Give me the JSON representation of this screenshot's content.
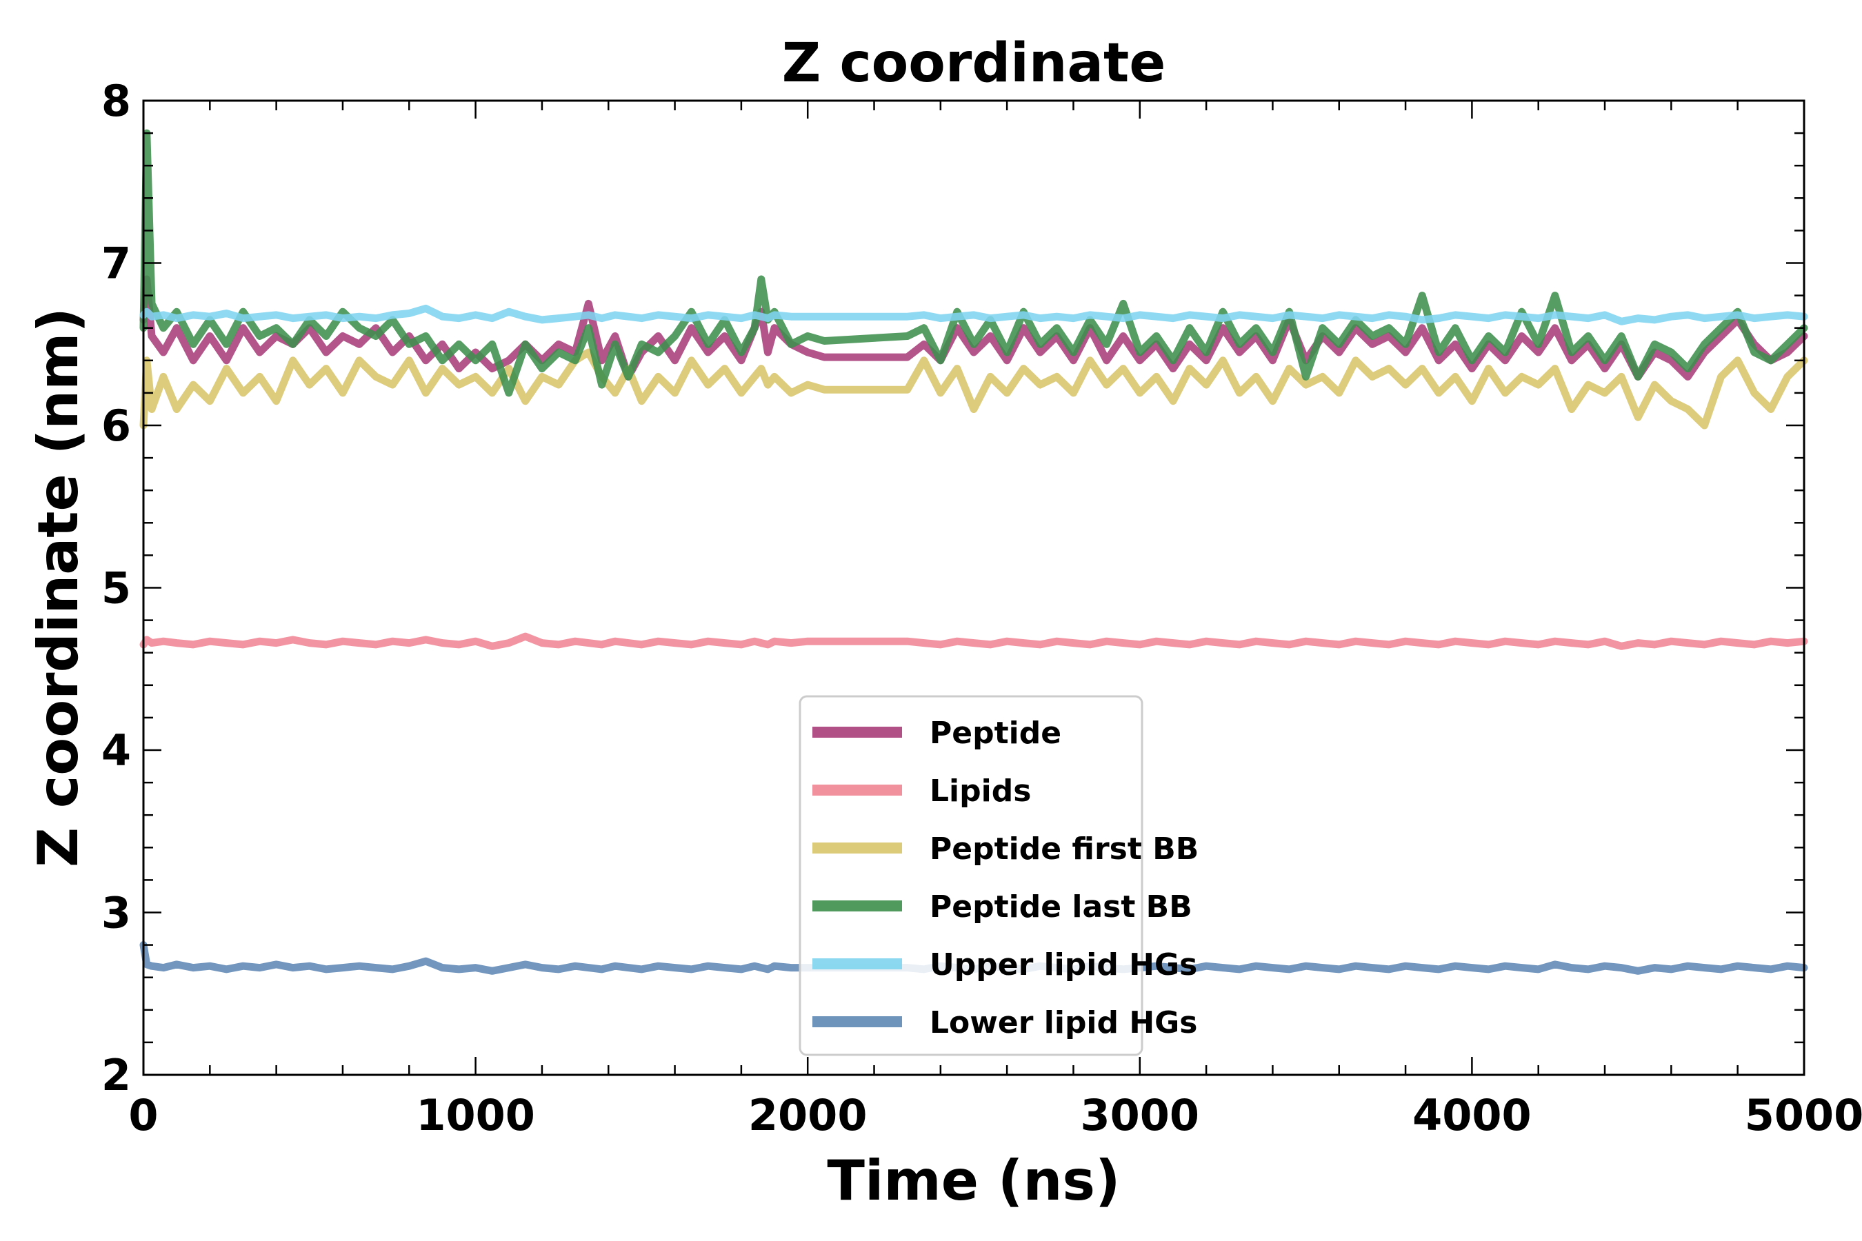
{
  "chart_data": {
    "type": "line",
    "title": "Z coordinate",
    "xlabel": "Time (ns)",
    "ylabel": "Z coordinate (nm)",
    "xlim": [
      0,
      5000
    ],
    "ylim": [
      2,
      8
    ],
    "x_major_ticks": [
      0,
      1000,
      2000,
      3000,
      4000,
      5000
    ],
    "y_major_ticks": [
      2,
      3,
      4,
      5,
      6,
      7,
      8
    ],
    "x_tick_labels": [
      "0",
      "1000",
      "2000",
      "3000",
      "4000",
      "5000"
    ],
    "y_tick_labels": [
      "2",
      "3",
      "4",
      "5",
      "6",
      "7",
      "8"
    ],
    "x_minor_step": 200,
    "y_minor_step": 0.2,
    "grid": false,
    "legend_position": "lower-center",
    "x": [
      0,
      10,
      25,
      60,
      100,
      150,
      200,
      250,
      300,
      350,
      400,
      450,
      500,
      550,
      600,
      650,
      700,
      750,
      800,
      850,
      900,
      950,
      1000,
      1050,
      1100,
      1150,
      1200,
      1250,
      1300,
      1340,
      1380,
      1420,
      1460,
      1500,
      1550,
      1600,
      1650,
      1700,
      1750,
      1800,
      1840,
      1860,
      1880,
      1900,
      1950,
      2000,
      2050,
      2300,
      2350,
      2400,
      2450,
      2500,
      2550,
      2600,
      2650,
      2700,
      2750,
      2800,
      2850,
      2900,
      2950,
      3000,
      3050,
      3100,
      3150,
      3200,
      3250,
      3300,
      3350,
      3400,
      3450,
      3500,
      3550,
      3600,
      3650,
      3700,
      3750,
      3800,
      3850,
      3900,
      3950,
      4000,
      4050,
      4100,
      4150,
      4200,
      4250,
      4300,
      4350,
      4400,
      4450,
      4500,
      4550,
      4600,
      4650,
      4700,
      4750,
      4800,
      4850,
      4900,
      4950,
      5000
    ],
    "series": [
      {
        "name": "Peptide",
        "color": "#a83d7a",
        "values": [
          6.65,
          6.9,
          6.55,
          6.45,
          6.6,
          6.4,
          6.55,
          6.4,
          6.6,
          6.45,
          6.55,
          6.5,
          6.6,
          6.45,
          6.55,
          6.5,
          6.6,
          6.45,
          6.55,
          6.4,
          6.5,
          6.35,
          6.45,
          6.35,
          6.4,
          6.5,
          6.4,
          6.5,
          6.45,
          6.75,
          6.4,
          6.55,
          6.3,
          6.45,
          6.55,
          6.4,
          6.6,
          6.45,
          6.55,
          6.4,
          6.6,
          6.7,
          6.45,
          6.6,
          6.5,
          6.45,
          6.42,
          6.42,
          6.5,
          6.4,
          6.6,
          6.45,
          6.55,
          6.4,
          6.6,
          6.45,
          6.55,
          6.4,
          6.6,
          6.4,
          6.55,
          6.4,
          6.5,
          6.35,
          6.5,
          6.4,
          6.6,
          6.45,
          6.55,
          6.4,
          6.65,
          6.4,
          6.55,
          6.45,
          6.6,
          6.5,
          6.55,
          6.45,
          6.6,
          6.4,
          6.5,
          6.35,
          6.5,
          6.4,
          6.55,
          6.45,
          6.6,
          6.4,
          6.5,
          6.35,
          6.5,
          6.3,
          6.45,
          6.4,
          6.3,
          6.45,
          6.55,
          6.65,
          6.5,
          6.4,
          6.45,
          6.55
        ]
      },
      {
        "name": "Lipids",
        "color": "#f08594",
        "values": [
          4.65,
          4.68,
          4.66,
          4.67,
          4.66,
          4.65,
          4.67,
          4.66,
          4.65,
          4.67,
          4.66,
          4.68,
          4.66,
          4.65,
          4.67,
          4.66,
          4.65,
          4.67,
          4.66,
          4.68,
          4.66,
          4.65,
          4.67,
          4.64,
          4.66,
          4.7,
          4.66,
          4.65,
          4.67,
          4.66,
          4.65,
          4.67,
          4.66,
          4.65,
          4.67,
          4.66,
          4.65,
          4.67,
          4.66,
          4.65,
          4.67,
          4.66,
          4.65,
          4.67,
          4.66,
          4.67,
          4.67,
          4.67,
          4.66,
          4.65,
          4.67,
          4.66,
          4.65,
          4.67,
          4.66,
          4.65,
          4.67,
          4.66,
          4.65,
          4.67,
          4.66,
          4.65,
          4.67,
          4.66,
          4.65,
          4.67,
          4.66,
          4.65,
          4.67,
          4.66,
          4.65,
          4.67,
          4.66,
          4.65,
          4.67,
          4.66,
          4.65,
          4.67,
          4.66,
          4.65,
          4.67,
          4.66,
          4.65,
          4.67,
          4.66,
          4.65,
          4.67,
          4.66,
          4.65,
          4.67,
          4.64,
          4.66,
          4.65,
          4.67,
          4.66,
          4.65,
          4.67,
          4.66,
          4.65,
          4.67,
          4.66,
          4.67
        ]
      },
      {
        "name": "Peptide first BB",
        "color": "#d8c56a",
        "values": [
          6.0,
          6.4,
          6.1,
          6.3,
          6.1,
          6.25,
          6.15,
          6.35,
          6.2,
          6.3,
          6.15,
          6.4,
          6.25,
          6.35,
          6.2,
          6.4,
          6.3,
          6.25,
          6.4,
          6.2,
          6.35,
          6.25,
          6.3,
          6.2,
          6.35,
          6.15,
          6.3,
          6.25,
          6.4,
          6.45,
          6.3,
          6.2,
          6.35,
          6.15,
          6.3,
          6.2,
          6.4,
          6.25,
          6.35,
          6.2,
          6.3,
          6.35,
          6.25,
          6.3,
          6.2,
          6.25,
          6.22,
          6.22,
          6.4,
          6.2,
          6.35,
          6.1,
          6.3,
          6.2,
          6.35,
          6.25,
          6.3,
          6.2,
          6.4,
          6.25,
          6.35,
          6.2,
          6.3,
          6.15,
          6.35,
          6.25,
          6.4,
          6.2,
          6.3,
          6.15,
          6.35,
          6.25,
          6.3,
          6.2,
          6.4,
          6.3,
          6.35,
          6.25,
          6.35,
          6.2,
          6.3,
          6.15,
          6.35,
          6.2,
          6.3,
          6.25,
          6.35,
          6.1,
          6.25,
          6.2,
          6.3,
          6.05,
          6.25,
          6.15,
          6.1,
          6.0,
          6.3,
          6.4,
          6.2,
          6.1,
          6.3,
          6.4
        ]
      },
      {
        "name": "Peptide last BB",
        "color": "#3e8f4d",
        "values": [
          6.6,
          7.8,
          6.75,
          6.6,
          6.7,
          6.5,
          6.65,
          6.5,
          6.7,
          6.55,
          6.6,
          6.5,
          6.65,
          6.55,
          6.7,
          6.6,
          6.55,
          6.65,
          6.5,
          6.55,
          6.4,
          6.5,
          6.4,
          6.5,
          6.2,
          6.5,
          6.35,
          6.45,
          6.4,
          6.6,
          6.25,
          6.5,
          6.3,
          6.5,
          6.45,
          6.55,
          6.7,
          6.5,
          6.65,
          6.45,
          6.6,
          6.9,
          6.65,
          6.7,
          6.5,
          6.55,
          6.52,
          6.55,
          6.6,
          6.4,
          6.7,
          6.5,
          6.65,
          6.45,
          6.7,
          6.5,
          6.6,
          6.45,
          6.65,
          6.5,
          6.75,
          6.45,
          6.55,
          6.4,
          6.6,
          6.45,
          6.7,
          6.5,
          6.6,
          6.45,
          6.7,
          6.3,
          6.6,
          6.5,
          6.65,
          6.55,
          6.6,
          6.5,
          6.8,
          6.45,
          6.6,
          6.4,
          6.55,
          6.45,
          6.7,
          6.5,
          6.8,
          6.45,
          6.55,
          6.4,
          6.55,
          6.3,
          6.5,
          6.45,
          6.35,
          6.5,
          6.6,
          6.7,
          6.45,
          6.4,
          6.5,
          6.6
        ]
      },
      {
        "name": "Upper lipid HGs",
        "color": "#7fd4f0",
        "values": [
          6.68,
          6.7,
          6.67,
          6.68,
          6.66,
          6.68,
          6.67,
          6.69,
          6.66,
          6.67,
          6.68,
          6.66,
          6.67,
          6.68,
          6.66,
          6.67,
          6.66,
          6.68,
          6.69,
          6.72,
          6.67,
          6.66,
          6.68,
          6.66,
          6.7,
          6.67,
          6.65,
          6.66,
          6.67,
          6.68,
          6.66,
          6.68,
          6.67,
          6.66,
          6.68,
          6.67,
          6.66,
          6.68,
          6.67,
          6.66,
          6.68,
          6.67,
          6.66,
          6.68,
          6.67,
          6.67,
          6.67,
          6.67,
          6.68,
          6.66,
          6.67,
          6.68,
          6.66,
          6.67,
          6.68,
          6.66,
          6.67,
          6.66,
          6.68,
          6.67,
          6.66,
          6.68,
          6.67,
          6.66,
          6.68,
          6.67,
          6.66,
          6.68,
          6.67,
          6.66,
          6.68,
          6.67,
          6.66,
          6.68,
          6.67,
          6.66,
          6.68,
          6.67,
          6.65,
          6.66,
          6.68,
          6.67,
          6.66,
          6.68,
          6.67,
          6.66,
          6.68,
          6.67,
          6.66,
          6.68,
          6.64,
          6.66,
          6.65,
          6.67,
          6.68,
          6.66,
          6.67,
          6.68,
          6.66,
          6.67,
          6.68,
          6.67
        ]
      },
      {
        "name": "Lower lipid HGs",
        "color": "#5f88b5",
        "values": [
          2.8,
          2.68,
          2.67,
          2.66,
          2.68,
          2.66,
          2.67,
          2.65,
          2.67,
          2.66,
          2.68,
          2.66,
          2.67,
          2.65,
          2.66,
          2.67,
          2.66,
          2.65,
          2.67,
          2.7,
          2.66,
          2.65,
          2.66,
          2.64,
          2.66,
          2.68,
          2.66,
          2.65,
          2.67,
          2.66,
          2.65,
          2.67,
          2.66,
          2.65,
          2.67,
          2.66,
          2.65,
          2.67,
          2.66,
          2.65,
          2.67,
          2.66,
          2.65,
          2.67,
          2.66,
          2.66,
          2.66,
          2.66,
          2.65,
          2.67,
          2.66,
          2.65,
          2.67,
          2.66,
          2.65,
          2.67,
          2.66,
          2.65,
          2.67,
          2.66,
          2.65,
          2.66,
          2.67,
          2.66,
          2.65,
          2.67,
          2.66,
          2.65,
          2.67,
          2.66,
          2.65,
          2.67,
          2.66,
          2.65,
          2.67,
          2.66,
          2.65,
          2.67,
          2.66,
          2.65,
          2.67,
          2.66,
          2.65,
          2.67,
          2.66,
          2.65,
          2.68,
          2.66,
          2.65,
          2.67,
          2.66,
          2.64,
          2.66,
          2.65,
          2.67,
          2.66,
          2.65,
          2.67,
          2.66,
          2.65,
          2.67,
          2.66
        ]
      }
    ]
  }
}
